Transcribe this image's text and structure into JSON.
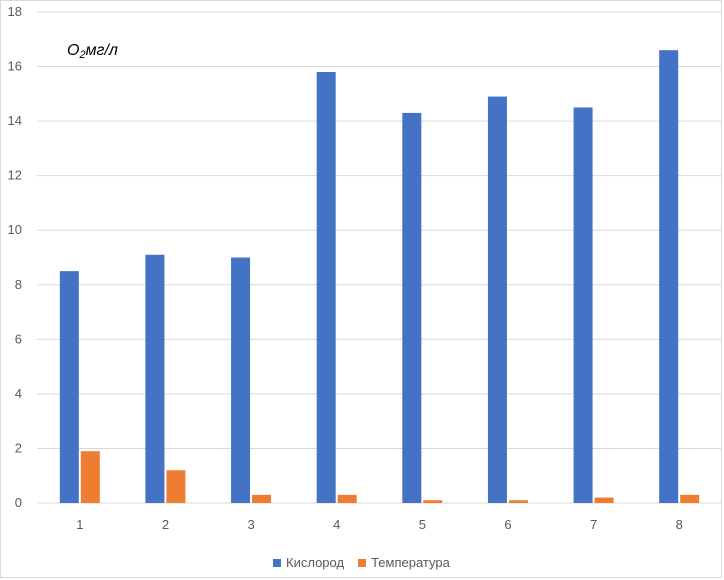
{
  "chart_data": {
    "type": "bar",
    "ylabel_parts": {
      "base": "O",
      "sub": "2",
      "rest": "мг/л"
    },
    "categories": [
      "1",
      "2",
      "3",
      "4",
      "5",
      "6",
      "7",
      "8"
    ],
    "ylim": [
      0,
      18
    ],
    "yticks": [
      "0",
      "2",
      "4",
      "6",
      "8",
      "10",
      "12",
      "14",
      "16",
      "18"
    ],
    "grid": true,
    "legend_position": "bottom",
    "series": [
      {
        "name": "Кислород",
        "color": "#4472c4",
        "values": [
          8.5,
          9.1,
          9.0,
          15.8,
          14.3,
          14.9,
          14.5,
          16.6
        ]
      },
      {
        "name": "Температура",
        "color": "#ed7d31",
        "values": [
          1.9,
          1.2,
          0.3,
          0.3,
          0.1,
          0.1,
          0.2,
          0.3
        ]
      }
    ]
  }
}
